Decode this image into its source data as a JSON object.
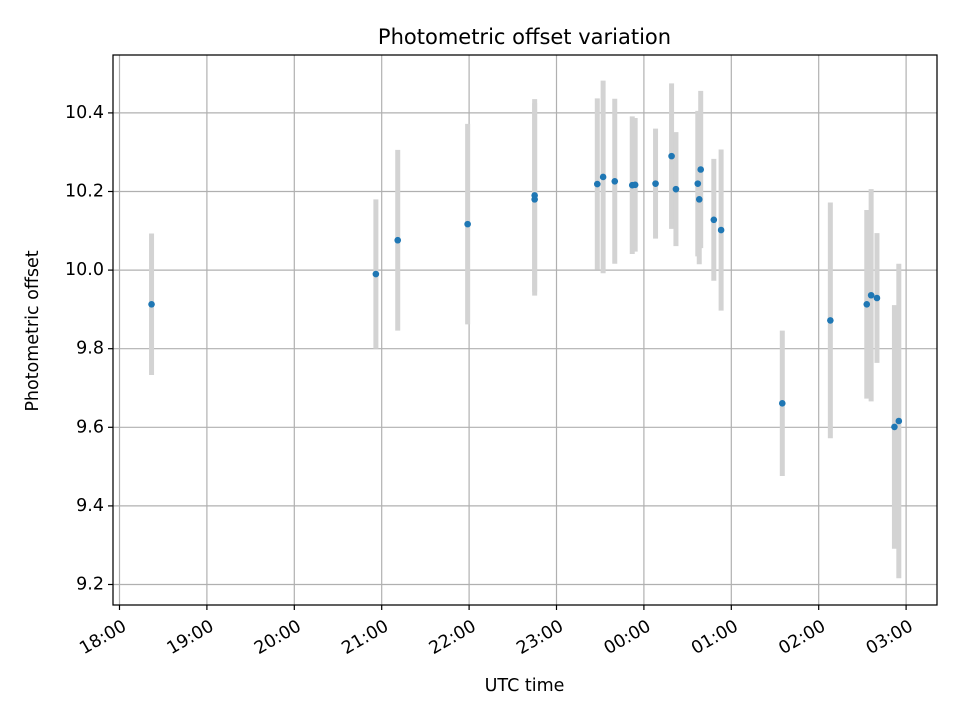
{
  "chart_data": {
    "type": "scatter",
    "title": "Photometric offset variation",
    "xlabel": "UTC time",
    "ylabel": "Photometric offset",
    "x_tick_labels": [
      "18:00",
      "19:00",
      "20:00",
      "21:00",
      "22:00",
      "23:00",
      "00:00",
      "01:00",
      "02:00",
      "03:00"
    ],
    "y_ticks": [
      9.2,
      9.4,
      9.6,
      9.8,
      10.0,
      10.2,
      10.4
    ],
    "y_tick_labels": [
      "9.2",
      "9.4",
      "9.6",
      "9.8",
      "10.0",
      "10.2",
      "10.4"
    ],
    "ylim": [
      9.15,
      10.55
    ],
    "grid": true,
    "colors": {
      "point": "#1f77b4",
      "error_bar": "#d3d3d3",
      "grid": "#b0b0b0"
    },
    "points": [
      {
        "time": "18:22",
        "y": 9.913,
        "err": 0.18
      },
      {
        "time": "20:56",
        "y": 9.99,
        "err": 0.19
      },
      {
        "time": "21:11",
        "y": 10.076,
        "err": 0.23
      },
      {
        "time": "21:59",
        "y": 10.117,
        "err": 0.255
      },
      {
        "time": "22:45",
        "y": 10.18,
        "err": 0.245
      },
      {
        "time": "22:45",
        "y": 10.19,
        "err": 0.245
      },
      {
        "time": "23:28",
        "y": 10.219,
        "err": 0.218
      },
      {
        "time": "23:32",
        "y": 10.237,
        "err": 0.245
      },
      {
        "time": "23:40",
        "y": 10.226,
        "err": 0.21
      },
      {
        "time": "23:52",
        "y": 10.216,
        "err": 0.175
      },
      {
        "time": "23:54",
        "y": 10.217,
        "err": 0.17
      },
      {
        "time": "00:08",
        "y": 10.22,
        "err": 0.14
      },
      {
        "time": "00:19",
        "y": 10.29,
        "err": 0.185
      },
      {
        "time": "00:22",
        "y": 10.206,
        "err": 0.145
      },
      {
        "time": "00:37",
        "y": 10.22,
        "err": 0.185
      },
      {
        "time": "00:38",
        "y": 10.18,
        "err": 0.165
      },
      {
        "time": "00:39",
        "y": 10.256,
        "err": 0.2
      },
      {
        "time": "00:48",
        "y": 10.128,
        "err": 0.155
      },
      {
        "time": "00:53",
        "y": 10.102,
        "err": 0.205
      },
      {
        "time": "01:35",
        "y": 9.661,
        "err": 0.185
      },
      {
        "time": "02:08",
        "y": 9.872,
        "err": 0.3
      },
      {
        "time": "02:33",
        "y": 9.913,
        "err": 0.24
      },
      {
        "time": "02:36",
        "y": 9.936,
        "err": 0.27
      },
      {
        "time": "02:40",
        "y": 9.929,
        "err": 0.165
      },
      {
        "time": "02:52",
        "y": 9.601,
        "err": 0.31
      },
      {
        "time": "02:55",
        "y": 9.616,
        "err": 0.4
      }
    ]
  }
}
